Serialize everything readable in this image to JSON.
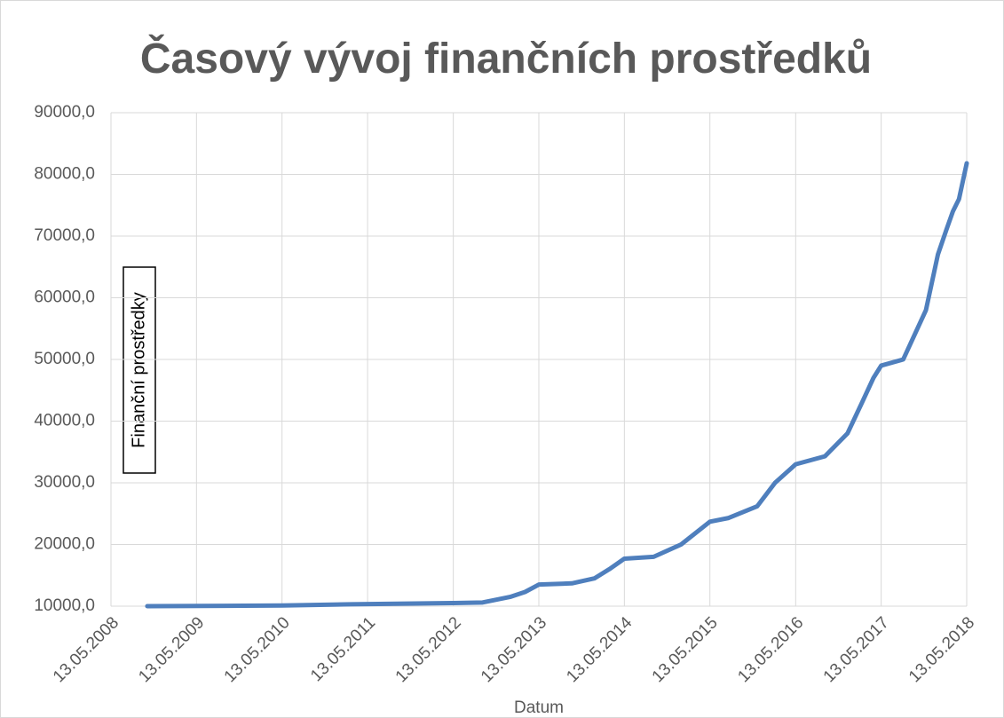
{
  "chart_data": {
    "type": "line",
    "title": "Časový vývoj finančních prostředků",
    "x_label": "Datum",
    "y_label": "Finanční prostředky",
    "grid": true,
    "x": [
      "2008-10-15",
      "2010-05-13",
      "2011-03-01",
      "2012-05-13",
      "2012-09-15",
      "2013-01-10",
      "2013-03-15",
      "2013-05-13",
      "2013-10-01",
      "2014-01-05",
      "2014-03-10",
      "2014-05-13",
      "2014-09-15",
      "2015-01-10",
      "2015-05-13",
      "2015-08-01",
      "2015-12-01",
      "2016-02-15",
      "2016-05-13",
      "2016-09-15",
      "2016-12-20",
      "2017-02-20",
      "2017-04-10",
      "2017-05-13",
      "2017-08-15",
      "2017-11-20",
      "2018-01-10",
      "2018-02-15",
      "2018-03-15",
      "2018-04-10",
      "2018-05-13"
    ],
    "series": [
      {
        "name": "Finanční prostředky",
        "color": "#4f7fbd",
        "values": [
          10000,
          10100,
          10300,
          10500,
          10600,
          11500,
          12300,
          13500,
          13700,
          14500,
          16000,
          17700,
          18000,
          20000,
          23700,
          24300,
          26200,
          30000,
          33000,
          34300,
          38000,
          43000,
          47000,
          49000,
          50000,
          58000,
          67000,
          71000,
          74000,
          76000,
          81800
        ]
      }
    ],
    "xlim": [
      "2008-05-13",
      "2018-05-13"
    ],
    "xticks": [
      {
        "value": "2008-05-13",
        "label": "13.05.2008"
      },
      {
        "value": "2009-05-13",
        "label": "13.05.2009"
      },
      {
        "value": "2010-05-13",
        "label": "13.05.2010"
      },
      {
        "value": "2011-05-13",
        "label": "13.05.2011"
      },
      {
        "value": "2012-05-13",
        "label": "13.05.2012"
      },
      {
        "value": "2013-05-13",
        "label": "13.05.2013"
      },
      {
        "value": "2014-05-13",
        "label": "13.05.2014"
      },
      {
        "value": "2015-05-13",
        "label": "13.05.2015"
      },
      {
        "value": "2016-05-13",
        "label": "13.05.2016"
      },
      {
        "value": "2017-05-13",
        "label": "13.05.2017"
      },
      {
        "value": "2018-05-13",
        "label": "13.05.2018"
      }
    ],
    "ylim": [
      10000,
      90000
    ],
    "yticks": [
      {
        "value": 10000,
        "label": "10000,0"
      },
      {
        "value": 20000,
        "label": "20000,0"
      },
      {
        "value": 30000,
        "label": "30000,0"
      },
      {
        "value": 40000,
        "label": "40000,0"
      },
      {
        "value": 50000,
        "label": "50000,0"
      },
      {
        "value": 60000,
        "label": "60000,0"
      },
      {
        "value": 70000,
        "label": "70000,0"
      },
      {
        "value": 80000,
        "label": "80000,0"
      },
      {
        "value": 90000,
        "label": "90000,0"
      }
    ]
  }
}
